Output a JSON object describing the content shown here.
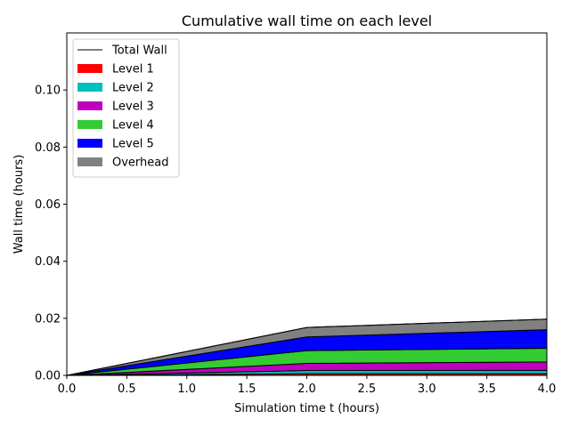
{
  "chart_data": {
    "type": "area",
    "title": "Cumulative wall time on each level",
    "xlabel": "Simulation time t (hours)",
    "ylabel": "Wall time (hours)",
    "xlim": [
      0.0,
      4.0
    ],
    "ylim": [
      0.0,
      0.12
    ],
    "xticks": [
      "0.0",
      "0.5",
      "1.0",
      "1.5",
      "2.0",
      "2.5",
      "3.0",
      "3.5",
      "4.0"
    ],
    "xtick_values": [
      0.0,
      0.5,
      1.0,
      1.5,
      2.0,
      2.5,
      3.0,
      3.5,
      4.0
    ],
    "yticks": [
      "0.00",
      "0.02",
      "0.04",
      "0.06",
      "0.08",
      "0.10"
    ],
    "ytick_values": [
      0.0,
      0.02,
      0.04,
      0.06,
      0.08,
      0.1
    ],
    "grid": false,
    "stacked": true,
    "legend_position": "top-left",
    "x": [
      0.0,
      2.0,
      4.0
    ],
    "series": [
      {
        "name": "Level 1",
        "values": [
          0.0,
          0.0006,
          0.0006
        ],
        "color": "#ff0000"
      },
      {
        "name": "Level 2",
        "values": [
          0.0,
          0.0011,
          0.0012
        ],
        "color": "#00bfbf"
      },
      {
        "name": "Level 3",
        "values": [
          0.0,
          0.0025,
          0.0029
        ],
        "color": "#bf00bf"
      },
      {
        "name": "Level 4",
        "values": [
          0.0,
          0.0045,
          0.0048
        ],
        "color": "#33cc33"
      },
      {
        "name": "Level 5",
        "values": [
          0.0,
          0.0048,
          0.0065
        ],
        "color": "#0000ff"
      },
      {
        "name": "Overhead",
        "values": [
          0.0,
          0.0033,
          0.0037
        ],
        "color": "#808080"
      }
    ],
    "total_wall": {
      "name": "Total Wall",
      "values": [
        0.0,
        0.0168,
        0.0197
      ],
      "color": "#000000"
    }
  }
}
